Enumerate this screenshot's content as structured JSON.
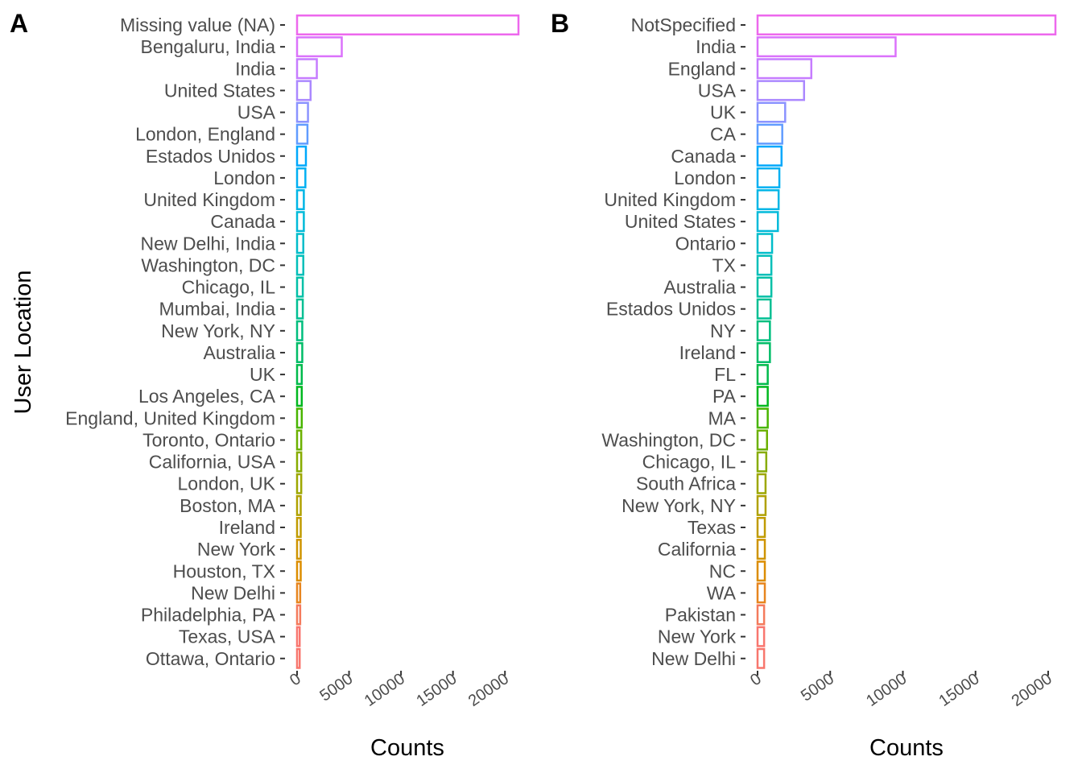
{
  "shared_y_label": "User Location",
  "chart_data": [
    {
      "type": "bar",
      "orientation": "horizontal",
      "panel": "A",
      "categories": [
        "Missing value (NA)",
        "Bengaluru, India",
        "India",
        "United States",
        "USA",
        "London, England",
        "Estados Unidos",
        "London",
        "United Kingdom",
        "Canada",
        "New Delhi, India",
        "Washington, DC",
        "Chicago, IL",
        "Mumbai, India",
        "New York, NY",
        "Australia",
        "UK",
        "Los Angeles, CA",
        "England, United Kingdom",
        "Toronto, Ontario",
        "California, USA",
        "London, UK",
        "Boston, MA",
        "Ireland",
        "New York",
        "Houston, TX",
        "New Delhi",
        "Philadelphia, PA",
        "Texas, USA",
        "Ottawa, Ontario"
      ],
      "values": [
        21300,
        4300,
        1900,
        1300,
        1050,
        1000,
        850,
        800,
        650,
        650,
        600,
        600,
        550,
        550,
        500,
        500,
        450,
        450,
        450,
        400,
        400,
        400,
        350,
        350,
        350,
        350,
        300,
        300,
        250,
        250
      ],
      "xlabel": "Counts",
      "ylabel": "User Location",
      "xlim": [
        0,
        21300
      ],
      "xticks": [
        "0",
        "5000",
        "10000",
        "15000",
        "20000"
      ],
      "xtick_values": [
        0,
        5000,
        10000,
        15000,
        20000
      ],
      "colors": [
        "#F8766D",
        "#F9766F",
        "#F47A5C",
        "#E7851E",
        "#DC8D00",
        "#CF9400",
        "#C09B00",
        "#B0A100",
        "#9DA700",
        "#87AC00",
        "#6CB100",
        "#48B500",
        "#00B81F",
        "#00BA4B",
        "#00BC67",
        "#00BE7E",
        "#00BF93",
        "#00C0A7",
        "#00BFB9",
        "#00BDCA",
        "#00BAD9",
        "#00B6E6",
        "#00B0F2",
        "#00A8FC",
        "#619CFF",
        "#8B93FF",
        "#AB88FF",
        "#C67CFF",
        "#DB72FB",
        "#ED68ED"
      ],
      "grid": false,
      "legend": "none"
    },
    {
      "type": "bar",
      "orientation": "horizontal",
      "panel": "B",
      "categories": [
        "NotSpecified",
        "India",
        "England",
        "USA",
        "UK",
        "CA",
        "Canada",
        "London",
        "United Kingdom",
        "United States",
        "Ontario",
        "TX",
        "Australia",
        "Estados Unidos",
        "NY",
        "Ireland",
        "FL",
        "PA",
        "MA",
        "Washington, DC",
        "Chicago, IL",
        "South Africa",
        "New York, NY",
        "Texas",
        "California",
        "NC",
        "WA",
        "Pakistan",
        "New York",
        "New Delhi"
      ],
      "values": [
        20500,
        9500,
        3700,
        3200,
        1900,
        1700,
        1650,
        1500,
        1450,
        1400,
        1000,
        950,
        950,
        900,
        850,
        850,
        700,
        700,
        700,
        650,
        600,
        550,
        550,
        500,
        500,
        500,
        500,
        450,
        450,
        450
      ],
      "xlabel": "Counts",
      "xlim": [
        0,
        20500
      ],
      "xticks": [
        "0",
        "5000",
        "10000",
        "15000",
        "20000"
      ],
      "xtick_values": [
        0,
        5000,
        10000,
        15000,
        20000
      ],
      "colors": [
        "#F8766D",
        "#F9766F",
        "#F47A5C",
        "#E7851E",
        "#DC8D00",
        "#CF9400",
        "#C09B00",
        "#B0A100",
        "#9DA700",
        "#87AC00",
        "#6CB100",
        "#48B500",
        "#00B81F",
        "#00BA4B",
        "#00BC67",
        "#00BE7E",
        "#00BF93",
        "#00C0A7",
        "#00BFB9",
        "#00BDCA",
        "#00BAD9",
        "#00B6E6",
        "#00B0F2",
        "#00A8FC",
        "#619CFF",
        "#8B93FF",
        "#AB88FF",
        "#C67CFF",
        "#DB72FB",
        "#ED68ED"
      ],
      "grid": false,
      "legend": "none"
    }
  ]
}
